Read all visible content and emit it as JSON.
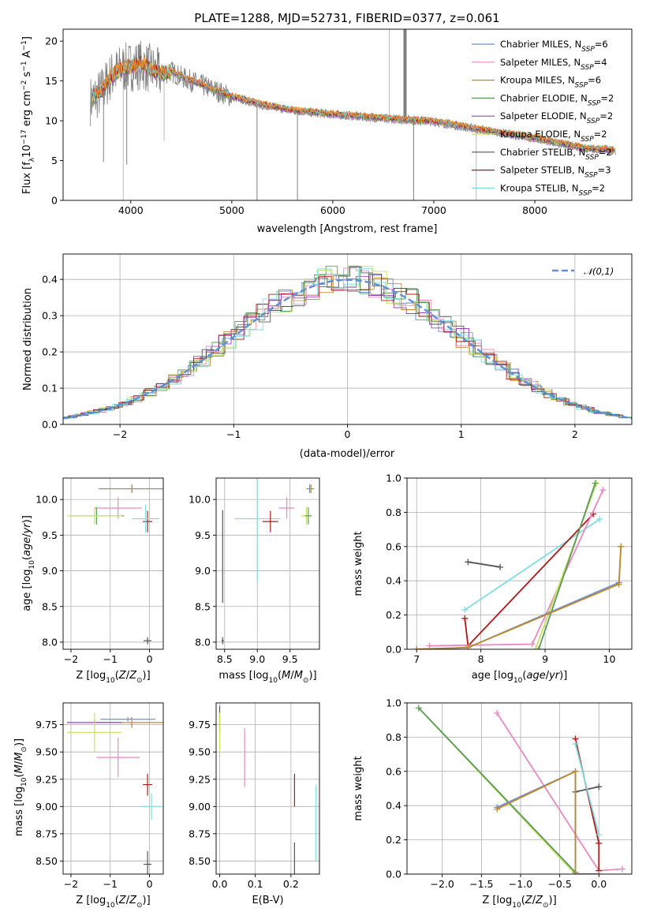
{
  "figure_title": "PLATE=1288, MJD=52731, FIBERID=0377, z=0.061",
  "colors": {
    "Chabrier MILES": "#6f8fd8",
    "Salpeter MILES": "#e889c0",
    "Kroupa MILES": "#c08a2a",
    "Chabrier ELODIE": "#5a9a5a",
    "Salpeter ELODIE": "#9a40c0",
    "Kroupa ELODIE": "#c8e060",
    "Chabrier STELIB": "#555555",
    "Salpeter STELIB": "#b01818",
    "Kroupa STELIB": "#80dde0",
    "data": "#808080",
    "orange": "#ee8020",
    "normal": "#5a90d8"
  },
  "chart_data": [
    {
      "id": "spectrum",
      "type": "line",
      "title": "PLATE=1288, MJD=52731, FIBERID=0377, z=0.061",
      "xlabel": "wavelength [Angstrom, rest frame]",
      "ylabel": "Flux [f_λ 10^-17 erg cm^-2 s^-1 A^-1]",
      "xlim": [
        3330,
        8960
      ],
      "ylim": [
        0,
        21.5
      ],
      "xticks": [
        4000,
        5000,
        6000,
        7000,
        8000
      ],
      "yticks": [
        0,
        5,
        10,
        15,
        20
      ],
      "legend_position": "top-right",
      "legend": [
        "Chabrier MILES, N_SSP=6",
        "Salpeter MILES, N_SSP=4",
        "Kroupa MILES, N_SSP=6",
        "Chabrier ELODIE, N_SSP=2",
        "Salpeter ELODIE, N_SSP=2",
        "Kroupa ELODIE, N_SSP=2",
        "Chabrier STELIB, N_SSP=2",
        "Salpeter STELIB, N_SSP=3",
        "Kroupa STELIB, N_SSP=2"
      ],
      "continuum": {
        "x": [
          3600,
          3700,
          3800,
          3900,
          4000,
          4100,
          4200,
          4300,
          4400,
          4500,
          4700,
          5000,
          5300,
          5600,
          6000,
          6500,
          7000,
          7500,
          8000,
          8500,
          8800
        ],
        "y": [
          12.5,
          13.5,
          15.5,
          16.5,
          16.8,
          17.0,
          16.5,
          15.8,
          16.2,
          15.5,
          14.5,
          13.0,
          12.0,
          11.3,
          10.8,
          10.3,
          9.9,
          8.8,
          7.8,
          6.5,
          6.3
        ]
      },
      "spikes": [
        {
          "x": 3925,
          "y": 0.0
        },
        {
          "x": 3960,
          "y": 4.5
        },
        {
          "x": 3730,
          "y": 4.8
        },
        {
          "x": 4330,
          "y": 7.5
        },
        {
          "x": 5250,
          "y": 0.0
        },
        {
          "x": 5650,
          "y": 0.0
        },
        {
          "x": 6560,
          "y": 21.5
        },
        {
          "x": 6715,
          "y": 21.5
        },
        {
          "x": 6800,
          "y": 0.0
        },
        {
          "x": 7420,
          "y": 0.0
        }
      ]
    },
    {
      "id": "residuals",
      "type": "histogram",
      "xlabel": "(data-model)/error",
      "ylabel": "Normed distribution",
      "xlim": [
        -2.5,
        2.5
      ],
      "ylim": [
        0,
        0.47
      ],
      "xticks": [
        -2,
        -1,
        0,
        1,
        2
      ],
      "yticks": [
        0.0,
        0.1,
        0.2,
        0.3,
        0.4
      ],
      "legend_position": "top-right",
      "legend": [
        "𝒩(0,1)"
      ]
    },
    {
      "id": "age-vs-Z",
      "type": "scatter",
      "xlabel": "Z [log10(Z/Z⊙)]",
      "ylabel": "age [log10(age/yr)]",
      "xlim": [
        -2.2,
        0.35
      ],
      "ylim": [
        7.9,
        10.3
      ],
      "xticks": [
        -2,
        -1,
        0
      ],
      "yticks": [
        8.0,
        8.5,
        9.0,
        9.5,
        10.0
      ],
      "points": [
        {
          "model": "Chabrier MILES",
          "x": -0.45,
          "y": 10.15,
          "xerr": 0.8,
          "yerr": 0.06
        },
        {
          "model": "Kroupa MILES",
          "x": -0.45,
          "y": 10.15,
          "xerr": 0.85,
          "yerr": 0.06
        },
        {
          "model": "Salpeter MILES",
          "x": -0.8,
          "y": 9.88,
          "xerr": 0.6,
          "yerr": 0.15
        },
        {
          "model": "Chabrier ELODIE",
          "x": -1.35,
          "y": 9.77,
          "xerr": 0.7,
          "yerr": 0.12
        },
        {
          "model": "Kroupa ELODIE",
          "x": -1.4,
          "y": 9.77,
          "xerr": 0.7,
          "yerr": 0.12
        },
        {
          "model": "Salpeter STELIB",
          "x": -0.05,
          "y": 9.69,
          "xerr": 0.12,
          "yerr": 0.15
        },
        {
          "model": "Kroupa STELIB",
          "x": -0.1,
          "y": 9.73,
          "xerr": 0.35,
          "yerr": 0.2
        },
        {
          "model": "Chabrier STELIB",
          "x": -0.05,
          "y": 8.02,
          "xerr": 0.1,
          "yerr": 0.05
        }
      ]
    },
    {
      "id": "age-vs-mass",
      "type": "scatter",
      "xlabel": "mass [log10(M/M⊙)]",
      "ylabel": "",
      "xlim": [
        8.37,
        9.95
      ],
      "ylim": [
        7.9,
        10.3
      ],
      "xticks": [
        8.5,
        9.0,
        9.5
      ],
      "yticks": [
        8.0,
        8.5,
        9.0,
        9.5,
        10.0
      ],
      "points": [
        {
          "model": "Chabrier STELIB",
          "x": 8.47,
          "y": 8.02,
          "xerr": 0.02,
          "yerr": 0.05
        },
        {
          "model": "Chabrier STELIB",
          "x": 8.47,
          "y": 9.2,
          "xerr": 0.0,
          "yerr": 0.65
        },
        {
          "model": "Kroupa STELIB",
          "x": 9.0,
          "y": 9.73,
          "xerr": 0.35,
          "yerr": 0.9
        },
        {
          "model": "Salpeter STELIB",
          "x": 9.2,
          "y": 9.69,
          "xerr": 0.12,
          "yerr": 0.15
        },
        {
          "model": "Salpeter MILES",
          "x": 9.45,
          "y": 9.88,
          "xerr": 0.12,
          "yerr": 0.15
        },
        {
          "model": "Chabrier MILES",
          "x": 9.8,
          "y": 10.15,
          "xerr": 0.05,
          "yerr": 0.06
        },
        {
          "model": "Kroupa MILES",
          "x": 9.82,
          "y": 10.15,
          "xerr": 0.05,
          "yerr": 0.06
        },
        {
          "model": "Kroupa ELODIE",
          "x": 9.75,
          "y": 9.77,
          "xerr": 0.08,
          "yerr": 0.12
        },
        {
          "model": "Chabrier ELODIE",
          "x": 9.78,
          "y": 9.77,
          "xerr": 0.05,
          "yerr": 0.12
        }
      ]
    },
    {
      "id": "weight-vs-age",
      "type": "line",
      "xlabel": "age [log10(age/yr)]",
      "ylabel": "mass weight",
      "xlim": [
        6.85,
        10.35
      ],
      "ylim": [
        0,
        1.0
      ],
      "xticks": [
        7,
        8,
        9,
        10
      ],
      "yticks": [
        0.0,
        0.2,
        0.4,
        0.6,
        0.8,
        1.0
      ],
      "series": [
        {
          "model": "Chabrier STELIB",
          "x": [
            7.8,
            8.3
          ],
          "y": [
            0.51,
            0.48
          ]
        },
        {
          "model": "Kroupa STELIB",
          "x": [
            7.75,
            9.85
          ],
          "y": [
            0.23,
            0.76
          ]
        },
        {
          "model": "Salpeter STELIB",
          "x": [
            7.75,
            7.8,
            9.75
          ],
          "y": [
            0.18,
            0.02,
            0.79
          ]
        },
        {
          "model": "Salpeter MILES",
          "x": [
            7.2,
            8.8,
            9.9
          ],
          "y": [
            0.02,
            0.03,
            0.93
          ]
        },
        {
          "model": "Kroupa ELODIE",
          "x": [
            8.85,
            9.8
          ],
          "y": [
            0.0,
            0.97
          ]
        },
        {
          "model": "Chabrier ELODIE",
          "x": [
            8.9,
            9.78
          ],
          "y": [
            0.0,
            0.97
          ]
        },
        {
          "model": "Chabrier MILES",
          "x": [
            7.0,
            7.8,
            10.15,
            10.18
          ],
          "y": [
            0.0,
            0.01,
            0.39,
            0.6
          ]
        },
        {
          "model": "Kroupa MILES",
          "x": [
            7.0,
            7.8,
            10.15,
            10.18
          ],
          "y": [
            0.0,
            0.01,
            0.38,
            0.6
          ]
        }
      ]
    },
    {
      "id": "mass-vs-Z",
      "type": "scatter",
      "xlabel": "Z [log10(Z/Z⊙)]",
      "ylabel": "mass [log10(M/M⊙)]",
      "xlim": [
        -2.2,
        0.35
      ],
      "ylim": [
        8.38,
        9.95
      ],
      "xticks": [
        -2,
        -1,
        0
      ],
      "yticks": [
        8.5,
        8.75,
        9.0,
        9.25,
        9.5,
        9.75
      ],
      "points": [
        {
          "model": "Chabrier MILES",
          "x": -0.55,
          "y": 9.8,
          "xerr": 0.7,
          "yerr": 0.02
        },
        {
          "model": "Kroupa MILES",
          "x": -0.45,
          "y": 9.77,
          "xerr": 0.95,
          "yerr": 0.05
        },
        {
          "model": "Salpeter ELODIE",
          "x": -1.4,
          "y": 9.77,
          "xerr": 0.7,
          "yerr": 0.02
        },
        {
          "model": "Kroupa ELODIE",
          "x": -1.4,
          "y": 9.68,
          "xerr": 0.7,
          "yerr": 0.18
        },
        {
          "model": "Salpeter MILES",
          "x": -0.8,
          "y": 9.45,
          "xerr": 0.55,
          "yerr": 0.18
        },
        {
          "model": "Salpeter STELIB",
          "x": -0.05,
          "y": 9.2,
          "xerr": 0.12,
          "yerr": 0.1
        },
        {
          "model": "Kroupa STELIB",
          "x": 0.05,
          "y": 9.0,
          "xerr": 0.25,
          "yerr": 0.12
        },
        {
          "model": "Chabrier STELIB",
          "x": -0.05,
          "y": 8.47,
          "xerr": 0.1,
          "yerr": 0.12
        }
      ]
    },
    {
      "id": "mass-vs-EBV",
      "type": "scatter",
      "xlabel": "E(B-V)",
      "ylabel": "",
      "xlim": [
        -0.01,
        0.28
      ],
      "ylim": [
        8.38,
        9.95
      ],
      "xticks": [
        0.0,
        0.1,
        0.2
      ],
      "yticks": [
        8.5,
        8.75,
        9.0,
        9.25,
        9.5,
        9.75
      ],
      "points": [
        {
          "model": "Chabrier STELIB",
          "x": 0.0,
          "y": 9.8,
          "yerr": 0.12
        },
        {
          "model": "Kroupa ELODIE",
          "x": 0.0,
          "y": 9.68,
          "yerr": 0.18
        },
        {
          "model": "Salpeter MILES",
          "x": 0.07,
          "y": 9.45,
          "yerr": 0.27
        },
        {
          "model": "Salpeter STELIB",
          "x": 0.21,
          "y": 9.15,
          "yerr": 0.15
        },
        {
          "model": "Chabrier STELIB",
          "x": 0.21,
          "y": 8.5,
          "yerr": 0.17
        },
        {
          "model": "Kroupa STELIB",
          "x": 0.27,
          "y": 8.85,
          "yerr": 0.35
        }
      ]
    },
    {
      "id": "weight-vs-Z",
      "type": "line",
      "xlabel": "Z [log10(Z/Z⊙)]",
      "ylabel": "mass weight",
      "xlim": [
        -2.45,
        0.42
      ],
      "ylim": [
        0,
        1.0
      ],
      "xticks": [
        -2.0,
        -1.5,
        -1.0,
        -0.5,
        0.0
      ],
      "yticks": [
        0.0,
        0.2,
        0.4,
        0.6,
        0.8,
        1.0
      ],
      "series": [
        {
          "model": "Kroupa ELODIE",
          "x": [
            -2.3,
            -0.3
          ],
          "y": [
            0.97,
            0.0
          ]
        },
        {
          "model": "Chabrier ELODIE",
          "x": [
            -2.3,
            -0.3
          ],
          "y": [
            0.97,
            0.01
          ]
        },
        {
          "model": "Salpeter MILES",
          "x": [
            -1.3,
            0.0,
            0.3
          ],
          "y": [
            0.94,
            0.02,
            0.03
          ]
        },
        {
          "model": "Chabrier STELIB",
          "x": [
            -0.3,
            0.0
          ],
          "y": [
            0.48,
            0.51
          ]
        },
        {
          "model": "Salpeter STELIB",
          "x": [
            -0.3,
            0.0,
            0.0
          ],
          "y": [
            0.79,
            0.18,
            0.02
          ]
        },
        {
          "model": "Kroupa STELIB",
          "x": [
            -0.3,
            0.0
          ],
          "y": [
            0.76,
            0.23
          ]
        },
        {
          "model": "Chabrier MILES",
          "x": [
            -1.3,
            -0.3,
            -0.3,
            0.0
          ],
          "y": [
            0.39,
            0.6,
            0.0,
            0.0
          ]
        },
        {
          "model": "Kroupa MILES",
          "x": [
            -1.3,
            -0.3,
            -0.3,
            0.0
          ],
          "y": [
            0.38,
            0.6,
            0.0,
            0.0
          ]
        }
      ]
    }
  ]
}
